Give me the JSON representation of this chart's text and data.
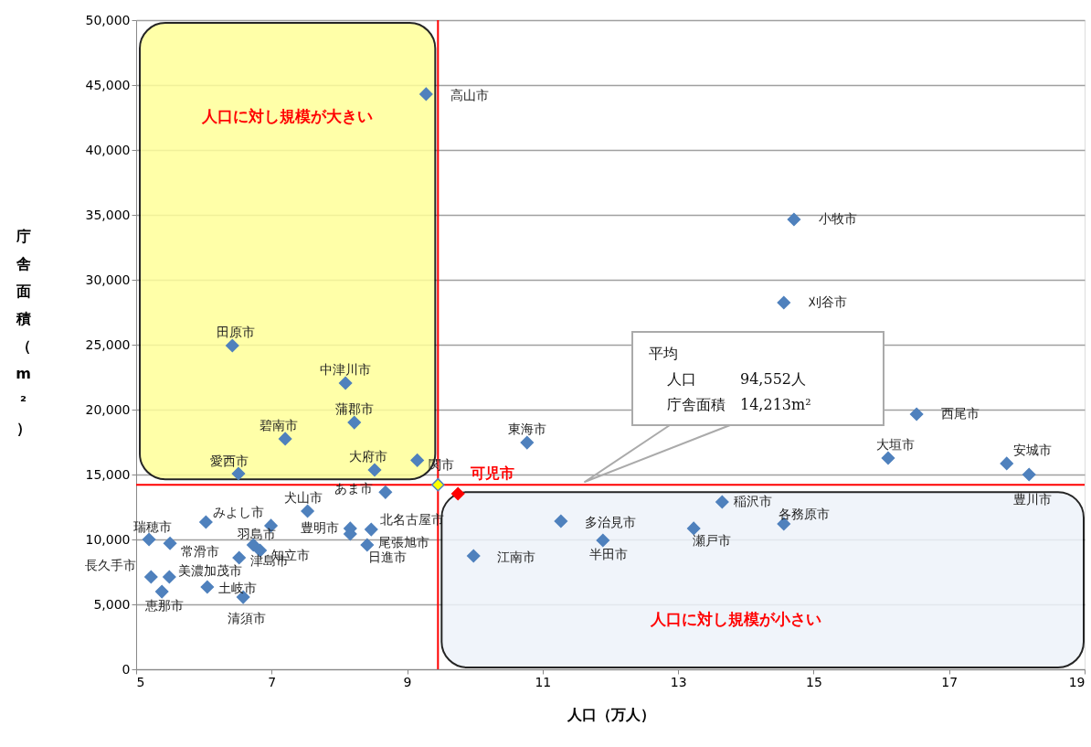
{
  "chart_data": {
    "type": "scatter",
    "xlabel": "人口（万人）",
    "ylabel": "庁舎面積（m²）",
    "xlim": [
      5,
      19
    ],
    "xticks": [
      5,
      7,
      9,
      11,
      13,
      15,
      17,
      19
    ],
    "ylim": [
      0,
      50000
    ],
    "yticks": [
      {
        "value": 0,
        "label": "0"
      },
      {
        "value": 5000,
        "label": "5,000"
      },
      {
        "value": 10000,
        "label": "10,000"
      },
      {
        "value": 15000,
        "label": "15,000"
      },
      {
        "value": 20000,
        "label": "20,000"
      },
      {
        "value": 25000,
        "label": "25,000"
      },
      {
        "value": 30000,
        "label": "30,000"
      },
      {
        "value": 35000,
        "label": "35,000"
      },
      {
        "value": 40000,
        "label": "40,000"
      },
      {
        "value": 45000,
        "label": "45,000"
      },
      {
        "value": 50000,
        "label": "50,000"
      }
    ],
    "grid": "y",
    "marker": "diamond",
    "series": [
      {
        "color": "#4f81bd",
        "x": [
          9.28,
          14.71,
          14.56,
          16.52,
          16.1,
          17.85,
          18.18,
          10.77,
          6.42,
          8.09,
          8.22,
          7.2,
          6.51,
          8.52,
          9.15,
          8.68,
          7.53,
          5.19,
          5.5,
          6.99,
          6.73,
          6.83,
          6.52,
          8.16,
          8.47,
          8.16,
          8.41,
          5.49,
          5.22,
          5.38,
          6.05,
          6.58,
          13.65,
          14.56,
          13.23,
          11.27,
          11.89,
          9.98,
          6.03
        ],
        "values": [
          44300,
          34650,
          28240,
          19650,
          16270,
          15850,
          15000,
          17460,
          24930,
          22040,
          19010,
          17750,
          15070,
          15350,
          16100,
          13640,
          12180,
          10000,
          9700,
          11060,
          9580,
          9150,
          8590,
          10850,
          10770,
          10420,
          9580,
          7110,
          7110,
          5980,
          6340,
          5560,
          12890,
          11200,
          10850,
          11410,
          9930,
          8730,
          11340
        ]
      },
      {
        "name": "可児市",
        "color": "#ff0000",
        "x": [
          9.75
        ],
        "values": [
          13520
        ]
      },
      {
        "color": "#ffff00",
        "x": [
          9.4552
        ],
        "values": [
          14213
        ]
      }
    ],
    "ref_lines": [
      {
        "axis": "x",
        "value": 9.4552,
        "color": "#ff0000"
      },
      {
        "axis": "y",
        "value": 14213,
        "color": "#ff0000"
      }
    ],
    "annotations": [
      {
        "text": "高山市",
        "x": 9.28,
        "y": 44300
      },
      {
        "text": "小牧市",
        "x": 14.71,
        "y": 34650
      },
      {
        "text": "刈谷市",
        "x": 14.56,
        "y": 28240
      },
      {
        "text": "西尾市",
        "x": 16.52,
        "y": 19650
      },
      {
        "text": "大垣市",
        "x": 16.1,
        "y": 16270
      },
      {
        "text": "安城市",
        "x": 17.85,
        "y": 15850
      },
      {
        "text": "豊川市",
        "x": 18.18,
        "y": 15000
      },
      {
        "text": "東海市",
        "x": 10.77,
        "y": 17460
      },
      {
        "text": "田原市",
        "x": 6.42,
        "y": 24930
      },
      {
        "text": "中津川市",
        "x": 8.09,
        "y": 22040
      },
      {
        "text": "蒲郡市",
        "x": 8.22,
        "y": 19010
      },
      {
        "text": "碧南市",
        "x": 7.2,
        "y": 17750
      },
      {
        "text": "愛西市",
        "x": 6.51,
        "y": 15070
      },
      {
        "text": "大府市",
        "x": 8.52,
        "y": 15350
      },
      {
        "text": "関市",
        "x": 9.15,
        "y": 16100
      },
      {
        "text": "あま市",
        "x": 8.68,
        "y": 13640
      },
      {
        "text": "犬山市",
        "x": 7.53,
        "y": 12180
      },
      {
        "text": "瑞穂市",
        "x": 5.19,
        "y": 10000
      },
      {
        "text": "常滑市",
        "x": 5.5,
        "y": 9700
      },
      {
        "text": "みよし市",
        "x": 6.99,
        "y": 11060
      },
      {
        "text": "羽島市",
        "x": 6.73,
        "y": 9580
      },
      {
        "text": "知立市",
        "x": 6.83,
        "y": 9150
      },
      {
        "text": "津島市",
        "x": 6.52,
        "y": 8590
      },
      {
        "text": "豊明市",
        "x": 8.16,
        "y": 10850
      },
      {
        "text": "北名古屋市",
        "x": 8.47,
        "y": 10770
      },
      {
        "text": "尾張旭市",
        "x": 8.16,
        "y": 10420
      },
      {
        "text": "日進市",
        "x": 8.41,
        "y": 9580
      },
      {
        "text": "美濃加茂市",
        "x": 5.49,
        "y": 7110
      },
      {
        "text": "長久手市",
        "x": 5.22,
        "y": 7110
      },
      {
        "text": "恵那市",
        "x": 5.38,
        "y": 5980
      },
      {
        "text": "土岐市",
        "x": 6.05,
        "y": 6340
      },
      {
        "text": "清須市",
        "x": 6.58,
        "y": 5560
      },
      {
        "text": "稲沢市",
        "x": 13.65,
        "y": 12890
      },
      {
        "text": "各務原市",
        "x": 14.56,
        "y": 11200
      },
      {
        "text": "瀬戸市",
        "x": 13.23,
        "y": 10850
      },
      {
        "text": "多治見市",
        "x": 11.27,
        "y": 11410
      },
      {
        "text": "半田市",
        "x": 11.89,
        "y": 9930
      },
      {
        "text": "江南市",
        "x": 9.98,
        "y": 8730
      },
      "人口に対し規模が大きい",
      "人口に対し規模が小さい",
      "平均",
      "人口　　　94,552人",
      "庁舎面積　14,213m²"
    ]
  }
}
